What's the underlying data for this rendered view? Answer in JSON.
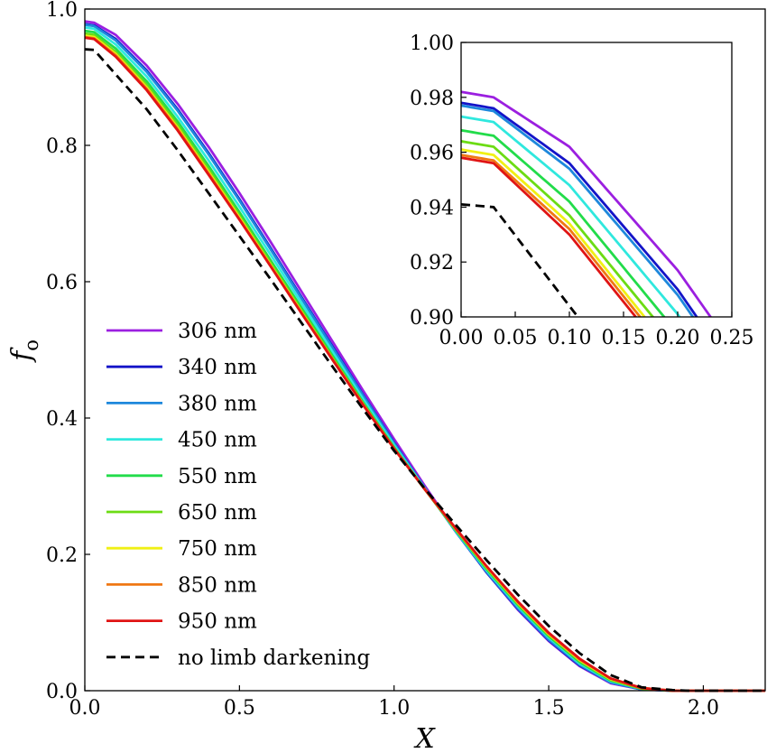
{
  "chart_data": [
    {
      "type": "line",
      "title": "",
      "xlabel": "X",
      "ylabel": "f",
      "ylabel_subscript": "o",
      "xlim": [
        0.0,
        2.2
      ],
      "ylim": [
        0.0,
        1.0
      ],
      "xticks": [
        "0.0",
        "0.5",
        "1.0",
        "1.5",
        "2.0"
      ],
      "yticks": [
        "0.0",
        "0.2",
        "0.4",
        "0.6",
        "0.8",
        "1.0"
      ],
      "grid": false,
      "legend_position": "left",
      "series": [
        {
          "name": "306 nm",
          "color": "#9b1fe0",
          "dash": false,
          "x": [
            0,
            0.03,
            0.1,
            0.2,
            0.3,
            0.4,
            0.5,
            0.6,
            0.7,
            0.8,
            0.9,
            1.0,
            1.1,
            1.2,
            1.3,
            1.4,
            1.5,
            1.6,
            1.7,
            1.8,
            1.9,
            1.95,
            2.0,
            2.2
          ],
          "y": [
            0.982,
            0.98,
            0.962,
            0.917,
            0.861,
            0.798,
            0.73,
            0.659,
            0.586,
            0.513,
            0.44,
            0.369,
            0.3,
            0.234,
            0.173,
            0.119,
            0.073,
            0.036,
            0.011,
            0.002,
            0.0,
            0.0,
            0.0,
            0.0
          ]
        },
        {
          "name": "340 nm",
          "color": "#1414c8",
          "dash": false,
          "x": [
            0,
            0.03,
            0.1,
            0.2,
            0.3,
            0.4,
            0.5,
            0.6,
            0.7,
            0.8,
            0.9,
            1.0,
            1.1,
            1.2,
            1.3,
            1.4,
            1.5,
            1.6,
            1.7,
            1.8,
            1.9,
            1.95,
            2.0,
            2.2
          ],
          "y": [
            0.978,
            0.976,
            0.956,
            0.91,
            0.853,
            0.789,
            0.721,
            0.65,
            0.578,
            0.506,
            0.434,
            0.364,
            0.297,
            0.233,
            0.173,
            0.12,
            0.074,
            0.037,
            0.012,
            0.002,
            0.0,
            0.0,
            0.0,
            0.0
          ]
        },
        {
          "name": "380 nm",
          "color": "#1e88dc",
          "dash": false,
          "x": [
            0,
            0.03,
            0.1,
            0.2,
            0.3,
            0.4,
            0.5,
            0.6,
            0.7,
            0.8,
            0.9,
            1.0,
            1.1,
            1.2,
            1.3,
            1.4,
            1.5,
            1.6,
            1.7,
            1.8,
            1.9,
            1.95,
            2.0,
            2.2
          ],
          "y": [
            0.977,
            0.975,
            0.954,
            0.908,
            0.851,
            0.787,
            0.719,
            0.648,
            0.576,
            0.504,
            0.433,
            0.363,
            0.297,
            0.233,
            0.174,
            0.121,
            0.075,
            0.038,
            0.012,
            0.002,
            0.0,
            0.0,
            0.0,
            0.0
          ]
        },
        {
          "name": "450 nm",
          "color": "#2fe8de",
          "dash": false,
          "x": [
            0,
            0.03,
            0.1,
            0.2,
            0.3,
            0.4,
            0.5,
            0.6,
            0.7,
            0.8,
            0.9,
            1.0,
            1.1,
            1.2,
            1.3,
            1.4,
            1.5,
            1.6,
            1.7,
            1.8,
            1.9,
            1.95,
            2.0,
            2.2
          ],
          "y": [
            0.973,
            0.971,
            0.948,
            0.901,
            0.842,
            0.778,
            0.71,
            0.64,
            0.569,
            0.498,
            0.428,
            0.36,
            0.296,
            0.234,
            0.176,
            0.124,
            0.078,
            0.04,
            0.014,
            0.003,
            0.0,
            0.0,
            0.0,
            0.0
          ]
        },
        {
          "name": "550 nm",
          "color": "#22dc4a",
          "dash": false,
          "x": [
            0,
            0.03,
            0.1,
            0.2,
            0.3,
            0.4,
            0.5,
            0.6,
            0.7,
            0.8,
            0.9,
            1.0,
            1.1,
            1.2,
            1.3,
            1.4,
            1.5,
            1.6,
            1.7,
            1.8,
            1.9,
            1.95,
            2.0,
            2.2
          ],
          "y": [
            0.968,
            0.966,
            0.942,
            0.894,
            0.835,
            0.77,
            0.702,
            0.632,
            0.562,
            0.492,
            0.423,
            0.357,
            0.295,
            0.235,
            0.178,
            0.126,
            0.08,
            0.042,
            0.015,
            0.003,
            0.0,
            0.0,
            0.0,
            0.0
          ]
        },
        {
          "name": "650 nm",
          "color": "#6cdc14",
          "dash": false,
          "x": [
            0,
            0.03,
            0.1,
            0.2,
            0.3,
            0.4,
            0.5,
            0.6,
            0.7,
            0.8,
            0.9,
            1.0,
            1.1,
            1.2,
            1.3,
            1.4,
            1.5,
            1.6,
            1.7,
            1.8,
            1.9,
            1.95,
            2.0,
            2.2
          ],
          "y": [
            0.964,
            0.962,
            0.937,
            0.889,
            0.83,
            0.765,
            0.697,
            0.628,
            0.558,
            0.489,
            0.421,
            0.356,
            0.295,
            0.236,
            0.18,
            0.128,
            0.082,
            0.044,
            0.016,
            0.003,
            0.0,
            0.0,
            0.0,
            0.0
          ]
        },
        {
          "name": "750 nm",
          "color": "#f0f014",
          "dash": false,
          "x": [
            0,
            0.03,
            0.1,
            0.2,
            0.3,
            0.4,
            0.5,
            0.6,
            0.7,
            0.8,
            0.9,
            1.0,
            1.1,
            1.2,
            1.3,
            1.4,
            1.5,
            1.6,
            1.7,
            1.8,
            1.9,
            1.95,
            2.0,
            2.2
          ],
          "y": [
            0.961,
            0.959,
            0.934,
            0.885,
            0.826,
            0.761,
            0.694,
            0.625,
            0.556,
            0.487,
            0.42,
            0.355,
            0.295,
            0.237,
            0.181,
            0.129,
            0.083,
            0.045,
            0.017,
            0.004,
            0.0,
            0.0,
            0.0,
            0.0
          ]
        },
        {
          "name": "850 nm",
          "color": "#f07814",
          "dash": false,
          "x": [
            0,
            0.03,
            0.1,
            0.2,
            0.3,
            0.4,
            0.5,
            0.6,
            0.7,
            0.8,
            0.9,
            1.0,
            1.1,
            1.2,
            1.3,
            1.4,
            1.5,
            1.6,
            1.7,
            1.8,
            1.9,
            1.95,
            2.0,
            2.2
          ],
          "y": [
            0.959,
            0.957,
            0.932,
            0.883,
            0.824,
            0.759,
            0.692,
            0.624,
            0.555,
            0.487,
            0.42,
            0.355,
            0.295,
            0.237,
            0.182,
            0.13,
            0.084,
            0.046,
            0.018,
            0.004,
            0.0,
            0.0,
            0.0,
            0.0
          ]
        },
        {
          "name": "950 nm",
          "color": "#e01414",
          "dash": false,
          "x": [
            0,
            0.03,
            0.1,
            0.2,
            0.3,
            0.4,
            0.5,
            0.6,
            0.7,
            0.8,
            0.9,
            1.0,
            1.1,
            1.2,
            1.3,
            1.4,
            1.5,
            1.6,
            1.7,
            1.8,
            1.9,
            1.95,
            2.0,
            2.2
          ],
          "y": [
            0.958,
            0.956,
            0.93,
            0.881,
            0.822,
            0.757,
            0.691,
            0.623,
            0.554,
            0.486,
            0.419,
            0.355,
            0.295,
            0.238,
            0.182,
            0.131,
            0.085,
            0.047,
            0.018,
            0.004,
            0.0,
            0.0,
            0.0,
            0.0
          ]
        },
        {
          "name": "no limb darkening",
          "color": "#000000",
          "dash": true,
          "x": [
            0,
            0.03,
            0.1,
            0.2,
            0.3,
            0.4,
            0.5,
            0.6,
            0.7,
            0.8,
            0.9,
            1.0,
            1.1,
            1.2,
            1.3,
            1.4,
            1.5,
            1.6,
            1.7,
            1.8,
            1.9,
            1.95,
            2.0,
            2.2
          ],
          "y": [
            0.941,
            0.94,
            0.904,
            0.853,
            0.793,
            0.73,
            0.667,
            0.604,
            0.54,
            0.476,
            0.413,
            0.352,
            0.296,
            0.243,
            0.191,
            0.141,
            0.095,
            0.055,
            0.023,
            0.005,
            0.001,
            0.0,
            0.0,
            0.0
          ]
        }
      ]
    },
    {
      "type": "line",
      "title": "",
      "xlabel": "",
      "ylabel": "",
      "xlim": [
        0.0,
        0.25
      ],
      "ylim": [
        0.9,
        1.0
      ],
      "xticks": [
        "0.00",
        "0.05",
        "0.10",
        "0.15",
        "0.20",
        "0.25"
      ],
      "yticks": [
        "0.90",
        "0.92",
        "0.94",
        "0.96",
        "0.98",
        "1.00"
      ],
      "grid": false,
      "inset_of": 0,
      "x_range_shown_of_main_series": [
        0,
        0.25
      ]
    }
  ]
}
